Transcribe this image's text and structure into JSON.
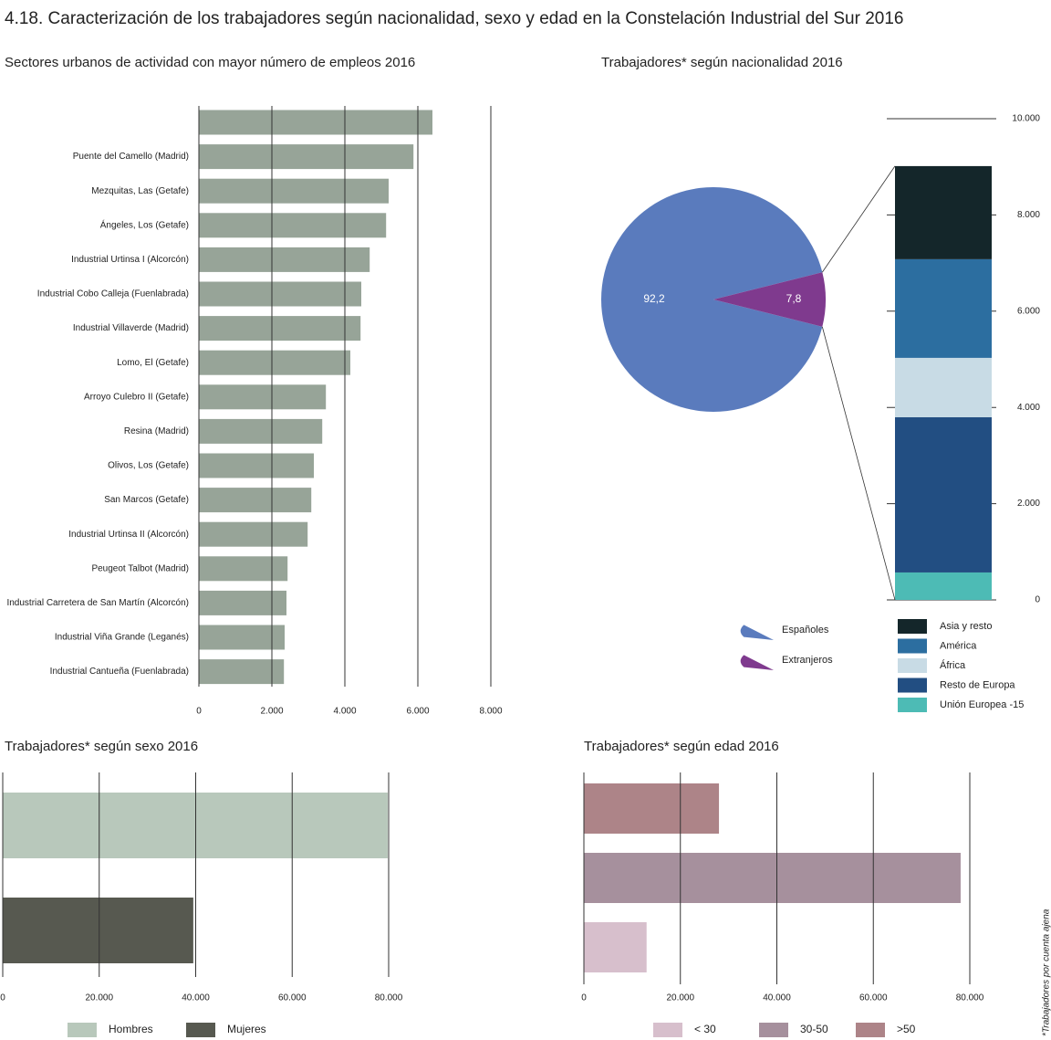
{
  "title": "4.18. Caracterización de los trabajadores según nacionalidad, sexo y edad en la Constelación Industrial del Sur  2016",
  "footnote": "*Trabajadores por cuenta ajena",
  "chart_data": [
    {
      "type": "bar",
      "orientation": "horizontal",
      "title": "Sectores urbanos de actividad con mayor número de empleos 2016",
      "categories": [
        null,
        "Puente del Camello (Madrid)",
        "Mezquitas, Las (Getafe)",
        "Ángeles, Los (Getafe)",
        "Industrial Urtinsa I (Alcorcón)",
        "Industrial Cobo Calleja (Fuenlabrada)",
        "Industrial Villaverde (Madrid)",
        "Lomo, El (Getafe)",
        "Arroyo Culebro II (Getafe)",
        "Resina (Madrid)",
        "Olivos, Los (Getafe)",
        "San Marcos (Getafe)",
        "Industrial Urtinsa II (Alcorcón)",
        "Peugeot Talbot (Madrid)",
        "Industrial Carretera de San Martín (Alcorcón)",
        "Industrial Viña Grande (Leganés)",
        "Industrial Cantueña (Fuenlabrada)"
      ],
      "values": [
        6400,
        5880,
        5200,
        5130,
        4680,
        4450,
        4430,
        4150,
        3480,
        3380,
        3150,
        3080,
        2980,
        2430,
        2400,
        2350,
        2330
      ],
      "color": "#97a498",
      "xlim": [
        0,
        8000
      ],
      "xticks": [
        0,
        {
          "value": 2000,
          "label": "2.000"
        },
        {
          "value": 4000,
          "label": "4.000"
        },
        {
          "value": 6000,
          "label": "6.000"
        },
        {
          "value": 8000,
          "label": "8.000"
        }
      ],
      "grid": true
    },
    {
      "type": "pie",
      "title": "Trabajadores* según nacionalidad 2016",
      "categories": [
        "Españoles",
        "Extranjeros"
      ],
      "values": [
        92.2,
        7.8
      ],
      "value_labels": [
        "92,2",
        "7,8"
      ],
      "colors": [
        "#5a7bbd",
        "#7f3a8e"
      ]
    },
    {
      "type": "stacked_bar",
      "categories": [
        null
      ],
      "series": [
        {
          "name": "Unión Europea -15",
          "color": "#4dbbb5",
          "values": [
            570
          ]
        },
        {
          "name": "Resto de Europa",
          "color": "#224e82",
          "values": [
            3225
          ]
        },
        {
          "name": "África",
          "color": "#c8dbe5",
          "values": [
            1235
          ]
        },
        {
          "name": "América",
          "color": "#2c6ea0",
          "values": [
            2050
          ]
        },
        {
          "name": "Asia y resto",
          "color": "#14262a",
          "values": [
            1935
          ]
        }
      ],
      "ylim": [
        0,
        10000
      ],
      "yticks": [
        0,
        {
          "value": 2000,
          "label": "2.000"
        },
        {
          "value": 4000,
          "label": "4.000"
        },
        {
          "value": 6000,
          "label": "6.000"
        },
        {
          "value": 8000,
          "label": "8.000"
        },
        {
          "value": 10000,
          "label": "10.000"
        }
      ]
    },
    {
      "type": "bar",
      "orientation": "horizontal",
      "title": "Trabajadores* según sexo 2016",
      "series": [
        {
          "name": "Hombres",
          "color": "#b8c8bb",
          "values": [
            79800
          ]
        },
        {
          "name": "Mujeres",
          "color": "#575950",
          "values": [
            39500
          ]
        }
      ],
      "xlim": [
        0,
        80000
      ],
      "xticks": [
        0,
        {
          "value": 20000,
          "label": "20.000"
        },
        {
          "value": 40000,
          "label": "40.000"
        },
        {
          "value": 60000,
          "label": "60.000"
        },
        {
          "value": 80000,
          "label": "80.000"
        }
      ],
      "grid": true
    },
    {
      "type": "bar",
      "orientation": "horizontal",
      "title": "Trabajadores* según edad 2016",
      "series": [
        {
          "name": "< 30",
          "color": "#d7bfcc",
          "values": [
            13000
          ]
        },
        {
          "name": "30-50",
          "color": "#a6909d",
          "values": [
            78100
          ]
        },
        {
          "name": ">50",
          "color": "#ad8488",
          "values": [
            28000
          ]
        }
      ],
      "xlim": [
        0,
        80000
      ],
      "xticks": [
        0,
        {
          "value": 20000,
          "label": "20.000"
        },
        {
          "value": 40000,
          "label": "40.000"
        },
        {
          "value": 60000,
          "label": "60.000"
        },
        {
          "value": 80000,
          "label": "80.000"
        }
      ],
      "grid": true
    }
  ]
}
